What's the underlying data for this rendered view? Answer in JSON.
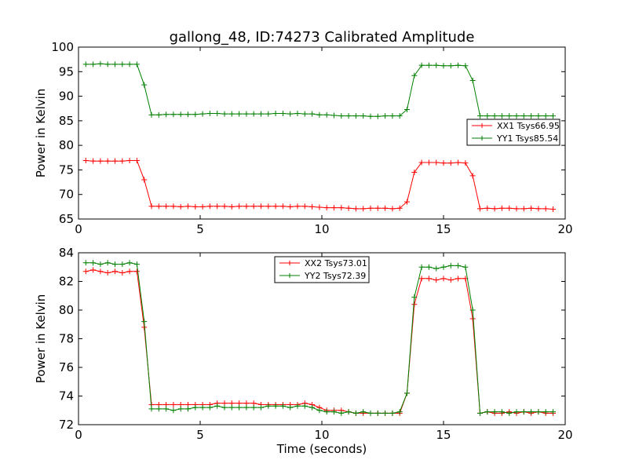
{
  "figure": {
    "title": "gallong_48, ID:74273 Calibrated Amplitude",
    "xlabel": "Time (seconds)"
  },
  "chart_data": [
    {
      "type": "line",
      "title": "gallong_48, ID:74273 Calibrated Amplitude",
      "xlabel": "",
      "ylabel": "Power in Kelvin",
      "xlim": [
        0,
        20
      ],
      "ylim": [
        65,
        100
      ],
      "xticks": [
        0,
        5,
        10,
        15,
        20
      ],
      "yticks": [
        65,
        70,
        75,
        80,
        85,
        90,
        95,
        100
      ],
      "legend_position": "center-right",
      "grid": false,
      "x": [
        0.3,
        0.6,
        0.9,
        1.2,
        1.5,
        1.8,
        2.1,
        2.4,
        2.7,
        3.0,
        3.3,
        3.6,
        3.9,
        4.2,
        4.5,
        4.8,
        5.1,
        5.4,
        5.7,
        6.0,
        6.3,
        6.6,
        6.9,
        7.2,
        7.5,
        7.8,
        8.1,
        8.4,
        8.7,
        9.0,
        9.3,
        9.6,
        9.9,
        10.2,
        10.5,
        10.8,
        11.1,
        11.4,
        11.7,
        12.0,
        12.3,
        12.6,
        12.9,
        13.2,
        13.5,
        13.8,
        14.1,
        14.4,
        14.7,
        15.0,
        15.3,
        15.6,
        15.9,
        16.2,
        16.5,
        16.8,
        17.1,
        17.4,
        17.7,
        18.0,
        18.3,
        18.6,
        18.9,
        19.2,
        19.5
      ],
      "series": [
        {
          "name": "XX1 Tsys66.95",
          "color": "#ff0000",
          "values": [
            76.9,
            76.8,
            76.8,
            76.8,
            76.8,
            76.8,
            76.9,
            76.9,
            73.0,
            67.6,
            67.6,
            67.6,
            67.6,
            67.5,
            67.6,
            67.5,
            67.5,
            67.6,
            67.6,
            67.6,
            67.5,
            67.6,
            67.6,
            67.6,
            67.6,
            67.6,
            67.6,
            67.6,
            67.5,
            67.6,
            67.6,
            67.5,
            67.4,
            67.3,
            67.3,
            67.3,
            67.2,
            67.1,
            67.1,
            67.2,
            67.2,
            67.2,
            67.1,
            67.2,
            68.5,
            74.5,
            76.5,
            76.5,
            76.5,
            76.4,
            76.4,
            76.5,
            76.4,
            73.8,
            67.1,
            67.2,
            67.1,
            67.2,
            67.2,
            67.1,
            67.1,
            67.2,
            67.1,
            67.1,
            67.0
          ]
        },
        {
          "name": "YY1 Tsys85.54",
          "color": "#008000",
          "values": [
            96.5,
            96.5,
            96.6,
            96.5,
            96.5,
            96.5,
            96.5,
            96.5,
            92.3,
            86.2,
            86.2,
            86.3,
            86.3,
            86.3,
            86.3,
            86.3,
            86.4,
            86.5,
            86.5,
            86.4,
            86.4,
            86.4,
            86.4,
            86.4,
            86.4,
            86.4,
            86.5,
            86.5,
            86.4,
            86.5,
            86.4,
            86.4,
            86.2,
            86.2,
            86.1,
            86.0,
            86.0,
            86.0,
            86.0,
            85.9,
            85.9,
            86.0,
            86.0,
            86.0,
            87.3,
            94.2,
            96.3,
            96.3,
            96.3,
            96.2,
            96.2,
            96.3,
            96.2,
            93.2,
            86.0,
            86.0,
            86.0,
            86.0,
            86.0,
            86.0,
            86.0,
            86.0,
            86.0,
            86.0,
            86.0
          ]
        }
      ]
    },
    {
      "type": "line",
      "title": "",
      "xlabel": "Time (seconds)",
      "ylabel": "Power in Kelvin",
      "xlim": [
        0,
        20
      ],
      "ylim": [
        72,
        84
      ],
      "xticks": [
        0,
        5,
        10,
        15,
        20
      ],
      "yticks": [
        72,
        74,
        76,
        78,
        80,
        82,
        84
      ],
      "legend_position": "upper-center",
      "grid": false,
      "x": [
        0.3,
        0.6,
        0.9,
        1.2,
        1.5,
        1.8,
        2.1,
        2.4,
        2.7,
        3.0,
        3.3,
        3.6,
        3.9,
        4.2,
        4.5,
        4.8,
        5.1,
        5.4,
        5.7,
        6.0,
        6.3,
        6.6,
        6.9,
        7.2,
        7.5,
        7.8,
        8.1,
        8.4,
        8.7,
        9.0,
        9.3,
        9.6,
        9.9,
        10.2,
        10.5,
        10.8,
        11.1,
        11.4,
        11.7,
        12.0,
        12.3,
        12.6,
        12.9,
        13.2,
        13.5,
        13.8,
        14.1,
        14.4,
        14.7,
        15.0,
        15.3,
        15.6,
        15.9,
        16.2,
        16.5,
        16.8,
        17.1,
        17.4,
        17.7,
        18.0,
        18.3,
        18.6,
        18.9,
        19.2,
        19.5
      ],
      "series": [
        {
          "name": "XX2 Tsys73.01",
          "color": "#ff0000",
          "values": [
            82.7,
            82.8,
            82.7,
            82.6,
            82.7,
            82.6,
            82.7,
            82.7,
            78.8,
            73.4,
            73.4,
            73.4,
            73.4,
            73.4,
            73.4,
            73.4,
            73.4,
            73.4,
            73.5,
            73.5,
            73.5,
            73.5,
            73.5,
            73.5,
            73.4,
            73.4,
            73.4,
            73.4,
            73.4,
            73.4,
            73.5,
            73.4,
            73.2,
            73.0,
            73.0,
            73.0,
            72.9,
            72.8,
            72.8,
            72.8,
            72.8,
            72.8,
            72.8,
            72.8,
            74.2,
            80.4,
            82.2,
            82.2,
            82.1,
            82.2,
            82.1,
            82.2,
            82.2,
            79.4,
            72.8,
            72.9,
            72.8,
            72.8,
            72.9,
            72.8,
            72.9,
            72.8,
            72.9,
            72.8,
            72.8
          ]
        },
        {
          "name": "YY2 Tsys72.39",
          "color": "#008000",
          "values": [
            83.3,
            83.3,
            83.2,
            83.3,
            83.2,
            83.2,
            83.3,
            83.2,
            79.2,
            73.1,
            73.1,
            73.1,
            73.0,
            73.1,
            73.1,
            73.2,
            73.2,
            73.2,
            73.3,
            73.2,
            73.2,
            73.2,
            73.2,
            73.2,
            73.2,
            73.3,
            73.3,
            73.3,
            73.2,
            73.3,
            73.3,
            73.2,
            73.0,
            72.9,
            72.9,
            72.8,
            72.9,
            72.8,
            72.9,
            72.8,
            72.8,
            72.8,
            72.8,
            72.9,
            74.2,
            80.9,
            83.0,
            83.0,
            82.9,
            83.0,
            83.1,
            83.1,
            83.0,
            80.0,
            72.8,
            72.9,
            72.9,
            72.9,
            72.8,
            72.9,
            72.9,
            72.9,
            72.9,
            72.9,
            72.9
          ]
        }
      ]
    }
  ]
}
